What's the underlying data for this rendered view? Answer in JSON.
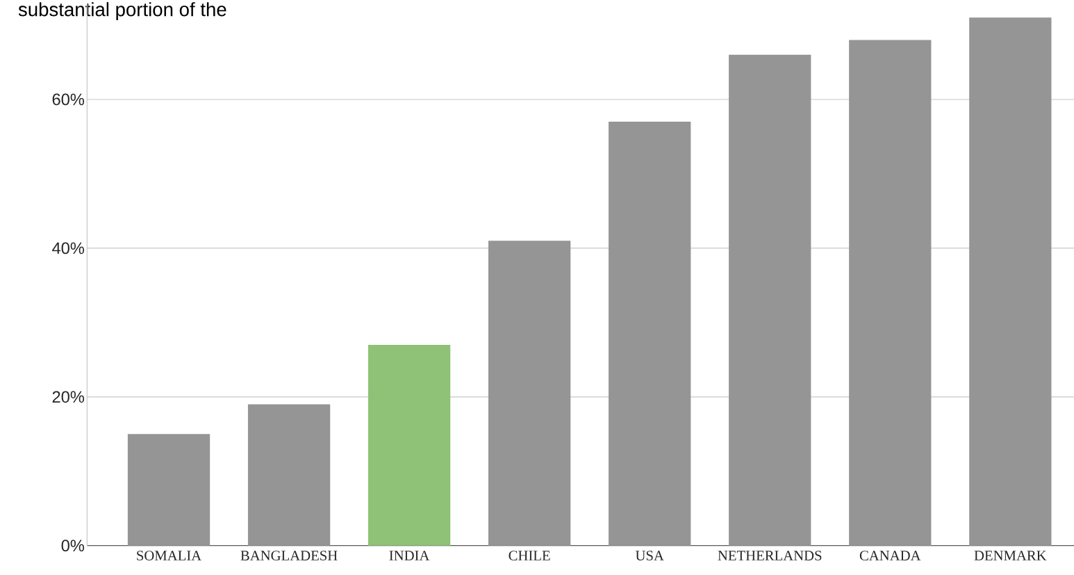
{
  "chart_data": {
    "type": "bar",
    "title": "substantial portion of the",
    "categories": [
      "SOMALIA",
      "BANGLADESH",
      "INDIA",
      "CHILE",
      "USA",
      "NETHERLANDS",
      "CANADA",
      "DENMARK"
    ],
    "values": [
      15,
      19,
      27,
      41,
      57,
      66,
      68,
      71
    ],
    "colors": [
      "#959595",
      "#959595",
      "#8fc177",
      "#959595",
      "#959595",
      "#959595",
      "#959595",
      "#959595"
    ],
    "ylim": [
      0,
      73
    ],
    "yticks": [
      {
        "value": 0,
        "label": "0%"
      },
      {
        "value": 20,
        "label": "20%"
      },
      {
        "value": 40,
        "label": "40%"
      },
      {
        "value": 60,
        "label": "60%"
      }
    ],
    "grid": "y"
  }
}
